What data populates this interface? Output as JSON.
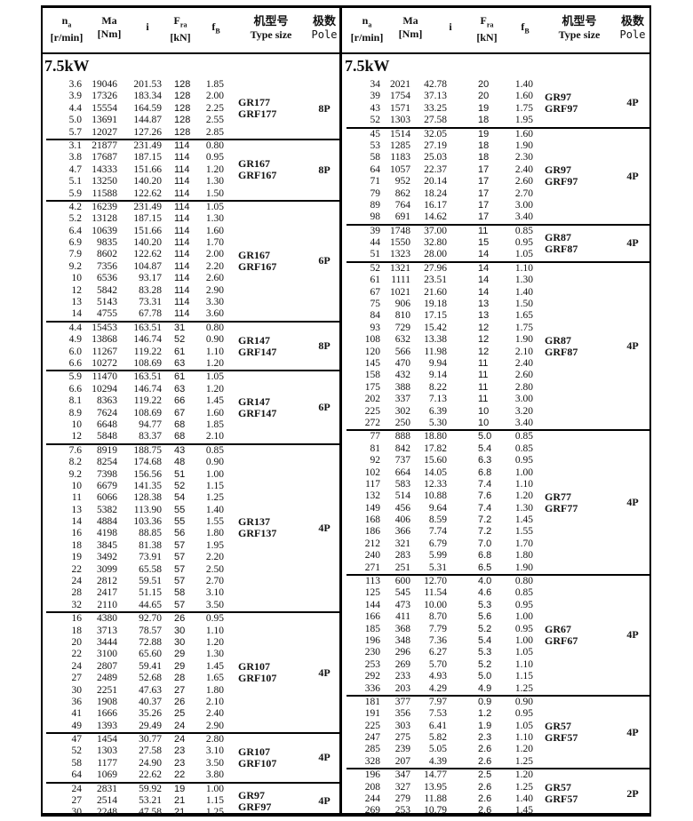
{
  "headers": {
    "n": "n",
    "n_sub": "a",
    "n_unit": "[r/min]",
    "ma": "Ma",
    "ma_unit": "[Nm]",
    "i": "i",
    "fra": "F",
    "fra_sub": "ra",
    "fra_unit": "[kN]",
    "fb": "f",
    "fb_sub": "B",
    "type_cn": "机型号",
    "type_en": "Type size",
    "pole_cn": "极数",
    "pole_en": "Pole"
  },
  "left": {
    "power": "7.5kW",
    "groups": [
      {
        "type": [
          "GR177",
          "GRF177"
        ],
        "pole": "8P",
        "rows": [
          [
            "3.6",
            "19046",
            "201.53",
            "128",
            "1.85"
          ],
          [
            "3.9",
            "17326",
            "183.34",
            "128",
            "2.00"
          ],
          [
            "4.4",
            "15554",
            "164.59",
            "128",
            "2.25"
          ],
          [
            "5.0",
            "13691",
            "144.87",
            "128",
            "2.55"
          ],
          [
            "5.7",
            "12027",
            "127.26",
            "128",
            "2.85"
          ]
        ]
      },
      {
        "type": [
          "GR167",
          "GRF167"
        ],
        "pole": "8P",
        "rows": [
          [
            "3.1",
            "21877",
            "231.49",
            "114",
            "0.80"
          ],
          [
            "3.8",
            "17687",
            "187.15",
            "114",
            "0.95"
          ],
          [
            "4.7",
            "14333",
            "151.66",
            "114",
            "1.20"
          ],
          [
            "5.1",
            "13250",
            "140.20",
            "114",
            "1.30"
          ],
          [
            "5.9",
            "11588",
            "122.62",
            "114",
            "1.50"
          ]
        ]
      },
      {
        "type": [
          "GR167",
          "GRF167"
        ],
        "pole": "6P",
        "rows": [
          [
            "4.2",
            "16239",
            "231.49",
            "114",
            "1.05"
          ],
          [
            "5.2",
            "13128",
            "187.15",
            "114",
            "1.30"
          ],
          [
            "6.4",
            "10639",
            "151.66",
            "114",
            "1.60"
          ],
          [
            "6.9",
            "9835",
            "140.20",
            "114",
            "1.70"
          ],
          [
            "7.9",
            "8602",
            "122.62",
            "114",
            "2.00"
          ],
          [
            "9.2",
            "7356",
            "104.87",
            "114",
            "2.20"
          ],
          [
            "10",
            "6536",
            "93.17",
            "114",
            "2.60"
          ],
          [
            "12",
            "5842",
            "83.28",
            "114",
            "2.90"
          ],
          [
            "13",
            "5143",
            "73.31",
            "114",
            "3.30"
          ],
          [
            "14",
            "4755",
            "67.78",
            "114",
            "3.60"
          ]
        ]
      },
      {
        "type": [
          "GR147",
          "GRF147"
        ],
        "pole": "8P",
        "rows": [
          [
            "4.4",
            "15453",
            "163.51",
            "31",
            "0.80"
          ],
          [
            "4.9",
            "13868",
            "146.74",
            "52",
            "0.90"
          ],
          [
            "6.0",
            "11267",
            "119.22",
            "61",
            "1.10"
          ],
          [
            "6.6",
            "10272",
            "108.69",
            "63",
            "1.20"
          ]
        ]
      },
      {
        "type": [
          "GR147",
          "GRF147"
        ],
        "pole": "6P",
        "rows": [
          [
            "5.9",
            "11470",
            "163.51",
            "61",
            "1.05"
          ],
          [
            "6.6",
            "10294",
            "146.74",
            "63",
            "1.20"
          ],
          [
            "8.1",
            "8363",
            "119.22",
            "66",
            "1.45"
          ],
          [
            "8.9",
            "7624",
            "108.69",
            "67",
            "1.60"
          ],
          [
            "10",
            "6648",
            "94.77",
            "68",
            "1.85"
          ],
          [
            "12",
            "5848",
            "83.37",
            "68",
            "2.10"
          ]
        ]
      },
      {
        "type": [
          "GR137",
          "GRF137"
        ],
        "pole": "4P",
        "rows": [
          [
            "7.6",
            "8919",
            "188.75",
            "43",
            "0.85"
          ],
          [
            "8.2",
            "8254",
            "174.68",
            "48",
            "0.90"
          ],
          [
            "9.2",
            "7398",
            "156.56",
            "51",
            "1.00"
          ],
          [
            "10",
            "6679",
            "141.35",
            "52",
            "1.15"
          ],
          [
            "11",
            "6066",
            "128.38",
            "54",
            "1.25"
          ],
          [
            "13",
            "5382",
            "113.90",
            "55",
            "1.40"
          ],
          [
            "14",
            "4884",
            "103.36",
            "55",
            "1.55"
          ],
          [
            "16",
            "4198",
            "88.85",
            "56",
            "1.80"
          ],
          [
            "18",
            "3845",
            "81.38",
            "57",
            "1.95"
          ],
          [
            "19",
            "3492",
            "73.91",
            "57",
            "2.20"
          ],
          [
            "22",
            "3099",
            "65.58",
            "57",
            "2.50"
          ],
          [
            "24",
            "2812",
            "59.51",
            "57",
            "2.70"
          ],
          [
            "28",
            "2417",
            "51.15",
            "58",
            "3.10"
          ],
          [
            "32",
            "2110",
            "44.65",
            "57",
            "3.50"
          ]
        ]
      },
      {
        "type": [
          "GR107",
          "GRF107"
        ],
        "pole": "4P",
        "rows": [
          [
            "16",
            "4380",
            "92.70",
            "26",
            "0.95"
          ],
          [
            "18",
            "3713",
            "78.57",
            "30",
            "1.10"
          ],
          [
            "20",
            "3444",
            "72.88",
            "30",
            "1.20"
          ],
          [
            "22",
            "3100",
            "65.60",
            "29",
            "1.30"
          ],
          [
            "24",
            "2807",
            "59.41",
            "29",
            "1.45"
          ],
          [
            "27",
            "2489",
            "52.68",
            "28",
            "1.65"
          ],
          [
            "30",
            "2251",
            "47.63",
            "27",
            "1.80"
          ],
          [
            "36",
            "1908",
            "40.37",
            "26",
            "2.10"
          ],
          [
            "41",
            "1666",
            "35.26",
            "25",
            "2.40"
          ],
          [
            "49",
            "1393",
            "29.49",
            "24",
            "2.90"
          ]
        ]
      },
      {
        "type": [
          "GR107",
          "GRF107"
        ],
        "pole": "4P",
        "rows": [
          [
            "47",
            "1454",
            "30.77",
            "24",
            "2.80"
          ],
          [
            "52",
            "1303",
            "27.58",
            "23",
            "3.10"
          ],
          [
            "58",
            "1177",
            "24.90",
            "23",
            "3.50"
          ],
          [
            "64",
            "1069",
            "22.62",
            "22",
            "3.80"
          ]
        ]
      },
      {
        "type": [
          "GR97",
          "GRF97"
        ],
        "pole": "4P",
        "rows": [
          [
            "24",
            "2831",
            "59.92",
            "19",
            "1.00"
          ],
          [
            "27",
            "2514",
            "53.21",
            "21",
            "1.15"
          ],
          [
            "30",
            "2248",
            "47.58",
            "21",
            "1.25"
          ]
        ]
      }
    ]
  },
  "right": {
    "power": "7.5kW",
    "groups": [
      {
        "type": [
          "GR97",
          "GRF97"
        ],
        "pole": "4P",
        "rows": [
          [
            "34",
            "2021",
            "42.78",
            "20",
            "1.40"
          ],
          [
            "39",
            "1754",
            "37.13",
            "20",
            "1.60"
          ],
          [
            "43",
            "1571",
            "33.25",
            "19",
            "1.75"
          ],
          [
            "52",
            "1303",
            "27.58",
            "18",
            "1.95"
          ]
        ]
      },
      {
        "type": [
          "GR97",
          "GRF97"
        ],
        "pole": "4P",
        "rows": [
          [
            "45",
            "1514",
            "32.05",
            "19",
            "1.60"
          ],
          [
            "53",
            "1285",
            "27.19",
            "18",
            "1.90"
          ],
          [
            "58",
            "1183",
            "25.03",
            "18",
            "2.30"
          ],
          [
            "64",
            "1057",
            "22.37",
            "17",
            "2.40"
          ],
          [
            "71",
            "952",
            "20.14",
            "17",
            "2.60"
          ],
          [
            "79",
            "862",
            "18.24",
            "17",
            "2.70"
          ],
          [
            "89",
            "764",
            "16.17",
            "17",
            "3.00"
          ],
          [
            "98",
            "691",
            "14.62",
            "17",
            "3.40"
          ]
        ]
      },
      {
        "type": [
          "GR87",
          "GRF87"
        ],
        "pole": "4P",
        "rows": [
          [
            "39",
            "1748",
            "37.00",
            "11",
            "0.85"
          ],
          [
            "44",
            "1550",
            "32.80",
            "15",
            "0.95"
          ],
          [
            "51",
            "1323",
            "28.00",
            "14",
            "1.05"
          ]
        ]
      },
      {
        "type": [
          "GR87",
          "GRF87"
        ],
        "pole": "4P",
        "rows": [
          [
            "52",
            "1321",
            "27.96",
            "14",
            "1.10"
          ],
          [
            "61",
            "1111",
            "23.51",
            "14",
            "1.30"
          ],
          [
            "67",
            "1021",
            "21.60",
            "14",
            "1.40"
          ],
          [
            "75",
            "906",
            "19.18",
            "13",
            "1.50"
          ],
          [
            "84",
            "810",
            "17.15",
            "13",
            "1.65"
          ],
          [
            "93",
            "729",
            "15.42",
            "12",
            "1.75"
          ],
          [
            "108",
            "632",
            "13.38",
            "12",
            "1.90"
          ],
          [
            "120",
            "566",
            "11.98",
            "12",
            "2.10"
          ],
          [
            "145",
            "470",
            "9.94",
            "11",
            "2.40"
          ],
          [
            "158",
            "432",
            "9.14",
            "11",
            "2.60"
          ],
          [
            "175",
            "388",
            "8.22",
            "11",
            "2.80"
          ],
          [
            "202",
            "337",
            "7.13",
            "11",
            "3.00"
          ],
          [
            "225",
            "302",
            "6.39",
            "10",
            "3.20"
          ],
          [
            "272",
            "250",
            "5.30",
            "10",
            "3.40"
          ]
        ]
      },
      {
        "type": [
          "GR77",
          "GRF77"
        ],
        "pole": "4P",
        "rows": [
          [
            "77",
            "888",
            "18.80",
            "5.0",
            "0.85"
          ],
          [
            "81",
            "842",
            "17.82",
            "5.4",
            "0.85"
          ],
          [
            "92",
            "737",
            "15.60",
            "6.3",
            "0.95"
          ],
          [
            "102",
            "664",
            "14.05",
            "6.8",
            "1.00"
          ],
          [
            "117",
            "583",
            "12.33",
            "7.4",
            "1.10"
          ],
          [
            "132",
            "514",
            "10.88",
            "7.6",
            "1.20"
          ],
          [
            "149",
            "456",
            "9.64",
            "7.4",
            "1.30"
          ],
          [
            "168",
            "406",
            "8.59",
            "7.2",
            "1.45"
          ],
          [
            "186",
            "366",
            "7.74",
            "7.2",
            "1.55"
          ],
          [
            "212",
            "321",
            "6.79",
            "7.0",
            "1.70"
          ],
          [
            "240",
            "283",
            "5.99",
            "6.8",
            "1.80"
          ],
          [
            "271",
            "251",
            "5.31",
            "6.5",
            "1.90"
          ]
        ]
      },
      {
        "type": [
          "GR67",
          "GRF67"
        ],
        "pole": "4P",
        "rows": [
          [
            "113",
            "600",
            "12.70",
            "4.0",
            "0.80"
          ],
          [
            "125",
            "545",
            "11.54",
            "4.6",
            "0.85"
          ],
          [
            "144",
            "473",
            "10.00",
            "5.3",
            "0.95"
          ],
          [
            "166",
            "411",
            "8.70",
            "5.6",
            "1.00"
          ],
          [
            "185",
            "368",
            "7.79",
            "5.2",
            "0.95"
          ],
          [
            "196",
            "348",
            "7.36",
            "5.4",
            "1.00"
          ],
          [
            "230",
            "296",
            "6.27",
            "5.3",
            "1.05"
          ],
          [
            "253",
            "269",
            "5.70",
            "5.2",
            "1.10"
          ],
          [
            "292",
            "233",
            "4.93",
            "5.0",
            "1.15"
          ],
          [
            "336",
            "203",
            "4.29",
            "4.9",
            "1.25"
          ]
        ]
      },
      {
        "type": [
          "GR57",
          "GRF57"
        ],
        "pole": "4P",
        "rows": [
          [
            "181",
            "377",
            "7.97",
            "0.9",
            "0.90"
          ],
          [
            "191",
            "356",
            "7.53",
            "1.2",
            "0.95"
          ],
          [
            "225",
            "303",
            "6.41",
            "1.9",
            "1.05"
          ],
          [
            "247",
            "275",
            "5.82",
            "2.3",
            "1.10"
          ],
          [
            "285",
            "239",
            "5.05",
            "2.6",
            "1.20"
          ],
          [
            "328",
            "207",
            "4.39",
            "2.6",
            "1.25"
          ]
        ]
      },
      {
        "type": [
          "GR57",
          "GRF57"
        ],
        "pole": "2P",
        "rows": [
          [
            "196",
            "347",
            "14.77",
            "2.5",
            "1.20"
          ],
          [
            "208",
            "327",
            "13.95",
            "2.6",
            "1.25"
          ],
          [
            "244",
            "279",
            "11.88",
            "2.6",
            "1.40"
          ],
          [
            "269",
            "253",
            "10.79",
            "2.6",
            "1.45"
          ]
        ]
      }
    ]
  }
}
